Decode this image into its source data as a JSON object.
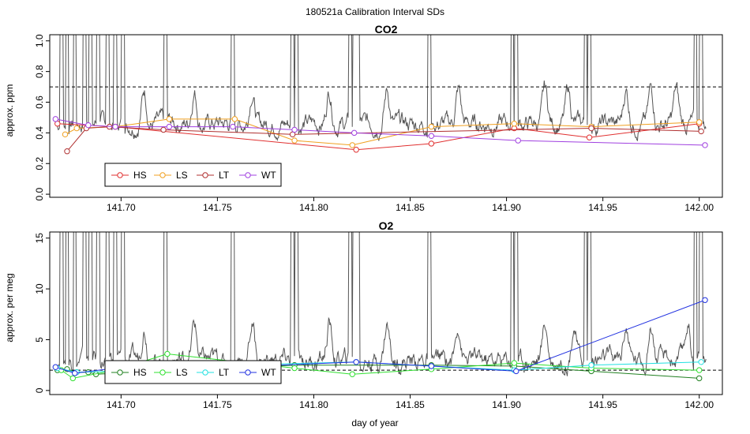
{
  "figure": {
    "title": "180521a   Calibration Interval SDs",
    "xlabel": "day of year"
  },
  "chart_data": [
    {
      "type": "line",
      "title": "CO2",
      "ylabel": "approx. ppm",
      "xlim": [
        141.663,
        142.012
      ],
      "ylim": [
        -0.02,
        1.04
      ],
      "xticks": [
        141.7,
        141.75,
        141.8,
        141.85,
        141.9,
        141.95,
        142.0
      ],
      "xtick_labels": [
        "141.70",
        "141.75",
        "141.80",
        "141.85",
        "141.90",
        "141.95",
        "142.00"
      ],
      "yticks": [
        0.0,
        0.2,
        0.4,
        0.6,
        0.8,
        1.0
      ],
      "ytick_labels": [
        "0.0",
        "0.2",
        "0.4",
        "0.6",
        "0.8",
        "1.0"
      ],
      "threshold": 0.7,
      "trace_color": "#555555",
      "trace": {
        "base": 0.46,
        "amplitude": 0.1,
        "spike_top": 1.04,
        "spikes": [
          141.669,
          141.672,
          141.676,
          141.681,
          141.684,
          141.688,
          141.693,
          141.697,
          141.701,
          141.723,
          141.758,
          141.789,
          141.791,
          141.819,
          141.821,
          141.823,
          141.86,
          141.903,
          141.905,
          141.941,
          141.943,
          141.998,
          142.001
        ],
        "bumps": [
          141.712,
          141.738,
          141.768,
          141.808,
          141.838,
          141.875,
          141.92,
          141.932,
          141.962,
          141.975,
          141.988
        ]
      },
      "legend": {
        "position": "bottom-left",
        "entries": [
          "HS",
          "LS",
          "LT",
          "WT"
        ]
      },
      "series": [
        {
          "name": "HS",
          "color": "#e03030",
          "x": [
            141.667,
            141.697,
            141.822,
            141.861,
            141.904,
            141.943,
            142.0
          ],
          "y": [
            0.46,
            0.44,
            0.29,
            0.33,
            0.43,
            0.37,
            0.46
          ]
        },
        {
          "name": "LS",
          "color": "#f0a020",
          "x": [
            141.671,
            141.677,
            141.697,
            141.725,
            141.759,
            141.79,
            141.82,
            141.861,
            141.904,
            141.944,
            142.0
          ],
          "y": [
            0.39,
            0.43,
            0.44,
            0.49,
            0.49,
            0.35,
            0.32,
            0.44,
            0.46,
            0.44,
            0.47
          ]
        },
        {
          "name": "LT",
          "color": "#b03030",
          "x": [
            141.672,
            141.682,
            141.694,
            141.722,
            141.789,
            141.944,
            142.001
          ],
          "y": [
            0.28,
            0.43,
            0.44,
            0.42,
            0.39,
            0.43,
            0.41
          ]
        },
        {
          "name": "WT",
          "color": "#a040e0",
          "x": [
            141.666,
            141.683,
            141.697,
            141.725,
            141.758,
            141.79,
            141.821,
            141.861,
            141.906,
            142.003
          ],
          "y": [
            0.49,
            0.45,
            0.44,
            0.44,
            0.44,
            0.42,
            0.4,
            0.38,
            0.35,
            0.32
          ]
        }
      ]
    },
    {
      "type": "line",
      "title": "O2",
      "ylabel": "approx. per meg",
      "xlim": [
        141.663,
        142.012
      ],
      "ylim": [
        -0.4,
        15.6
      ],
      "xticks": [
        141.7,
        141.75,
        141.8,
        141.85,
        141.9,
        141.95,
        142.0
      ],
      "xtick_labels": [
        "141.70",
        "141.75",
        "141.80",
        "141.85",
        "141.90",
        "141.95",
        "142.00"
      ],
      "yticks": [
        0,
        5,
        10,
        15
      ],
      "ytick_labels": [
        "0",
        "5",
        "10",
        "15"
      ],
      "threshold": 2.0,
      "trace_color": "#555555",
      "trace": {
        "base": 3.0,
        "amplitude": 1.6,
        "spike_top": 15.6,
        "spikes": [
          141.669,
          141.672,
          141.676,
          141.681,
          141.684,
          141.688,
          141.693,
          141.697,
          141.701,
          141.723,
          141.758,
          141.789,
          141.791,
          141.819,
          141.821,
          141.823,
          141.86,
          141.903,
          141.905,
          141.941,
          141.943,
          141.998,
          142.001
        ],
        "bumps": [
          141.712,
          141.738,
          141.768,
          141.808,
          141.838,
          141.875,
          141.92,
          141.935,
          141.962,
          141.975,
          141.994
        ]
      },
      "legend": {
        "position": "bottom-left",
        "entries": [
          "HS",
          "LS",
          "LT",
          "WT"
        ]
      },
      "series": [
        {
          "name": "HS",
          "color": "#208020",
          "x": [
            141.667,
            141.672,
            141.677,
            141.683,
            141.687,
            141.79,
            141.861,
            141.904,
            141.944,
            142.0
          ],
          "y": [
            2.0,
            2.1,
            1.8,
            1.8,
            1.6,
            2.5,
            2.5,
            2.4,
            1.9,
            1.2
          ]
        },
        {
          "name": "LS",
          "color": "#30e030",
          "x": [
            141.669,
            141.675,
            141.697,
            141.724,
            141.79,
            141.82,
            141.861,
            141.904,
            141.944,
            142.0
          ],
          "y": [
            2.0,
            1.2,
            2.0,
            3.6,
            2.2,
            1.6,
            2.1,
            2.7,
            2.2,
            2.0
          ]
        },
        {
          "name": "LT",
          "color": "#20e0e0",
          "x": [
            141.667,
            141.677,
            141.697,
            141.758,
            141.822,
            141.861,
            141.904,
            141.944,
            142.001
          ],
          "y": [
            2.2,
            1.8,
            1.9,
            2.5,
            2.8,
            2.4,
            2.0,
            2.5,
            2.8
          ]
        },
        {
          "name": "WT",
          "color": "#2030e0",
          "x": [
            141.666,
            141.676,
            141.697,
            141.758,
            141.822,
            141.861,
            141.905,
            142.003
          ],
          "y": [
            2.3,
            1.7,
            2.2,
            2.3,
            2.8,
            2.4,
            1.9,
            8.9
          ]
        }
      ]
    }
  ]
}
